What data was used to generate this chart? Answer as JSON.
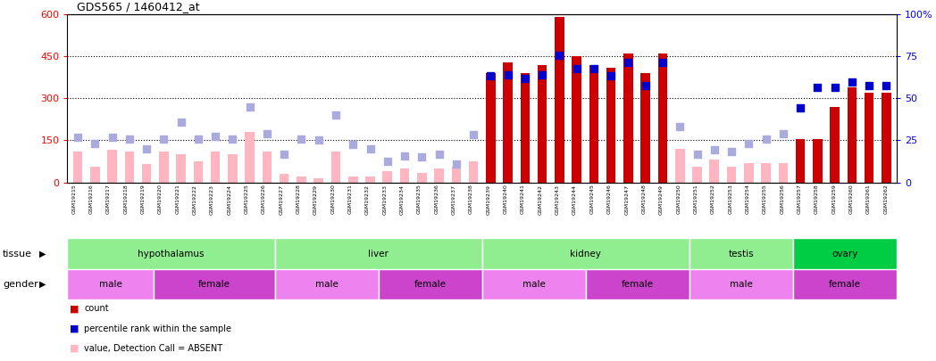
{
  "title": "GDS565 / 1460412_at",
  "samples": [
    "GSM19215",
    "GSM19216",
    "GSM19217",
    "GSM19218",
    "GSM19219",
    "GSM19220",
    "GSM19221",
    "GSM19222",
    "GSM19223",
    "GSM19224",
    "GSM19225",
    "GSM19226",
    "GSM19227",
    "GSM19228",
    "GSM19229",
    "GSM19230",
    "GSM19231",
    "GSM19232",
    "GSM19233",
    "GSM19234",
    "GSM19235",
    "GSM19236",
    "GSM19237",
    "GSM19238",
    "GSM19239",
    "GSM19240",
    "GSM19241",
    "GSM19242",
    "GSM19243",
    "GSM19244",
    "GSM19245",
    "GSM19246",
    "GSM19247",
    "GSM19248",
    "GSM19249",
    "GSM19250",
    "GSM19251",
    "GSM19252",
    "GSM19253",
    "GSM19254",
    "GSM19255",
    "GSM19256",
    "GSM19257",
    "GSM19258",
    "GSM19259",
    "GSM19260",
    "GSM19261",
    "GSM19262"
  ],
  "count_values": [
    110,
    55,
    115,
    110,
    65,
    110,
    100,
    75,
    110,
    100,
    180,
    110,
    30,
    20,
    15,
    110,
    20,
    20,
    40,
    50,
    35,
    50,
    55,
    75,
    390,
    430,
    390,
    420,
    590,
    450,
    420,
    410,
    460,
    390,
    460,
    120,
    55,
    80,
    55,
    70,
    70,
    70,
    155,
    155,
    270,
    340,
    320,
    320
  ],
  "percentile_values": [
    160,
    140,
    160,
    155,
    120,
    155,
    215,
    155,
    165,
    155,
    270,
    175,
    100,
    155,
    150,
    240,
    135,
    120,
    75,
    95,
    90,
    100,
    65,
    170,
    380,
    385,
    370,
    385,
    455,
    405,
    405,
    380,
    430,
    345,
    430,
    200,
    100,
    115,
    110,
    140,
    155,
    175,
    265,
    340,
    340,
    360,
    345,
    345
  ],
  "is_absent": [
    true,
    true,
    true,
    true,
    true,
    true,
    true,
    true,
    true,
    true,
    true,
    true,
    true,
    true,
    true,
    true,
    true,
    true,
    true,
    true,
    true,
    true,
    true,
    true,
    false,
    false,
    false,
    false,
    false,
    false,
    false,
    false,
    false,
    false,
    false,
    true,
    true,
    true,
    true,
    true,
    true,
    true,
    false,
    false,
    false,
    false,
    false,
    false
  ],
  "tissue_groups": [
    {
      "label": "hypothalamus",
      "start": 0,
      "end": 11,
      "color": "#90EE90"
    },
    {
      "label": "liver",
      "start": 12,
      "end": 23,
      "color": "#90EE90"
    },
    {
      "label": "kidney",
      "start": 24,
      "end": 35,
      "color": "#90EE90"
    },
    {
      "label": "testis",
      "start": 36,
      "end": 41,
      "color": "#90EE90"
    },
    {
      "label": "ovary",
      "start": 42,
      "end": 47,
      "color": "#00CC44"
    }
  ],
  "gender_groups": [
    {
      "label": "male",
      "start": 0,
      "end": 4,
      "color": "#EE82EE"
    },
    {
      "label": "female",
      "start": 5,
      "end": 11,
      "color": "#CC44CC"
    },
    {
      "label": "male",
      "start": 12,
      "end": 17,
      "color": "#EE82EE"
    },
    {
      "label": "female",
      "start": 18,
      "end": 23,
      "color": "#CC44CC"
    },
    {
      "label": "male",
      "start": 24,
      "end": 29,
      "color": "#EE82EE"
    },
    {
      "label": "female",
      "start": 30,
      "end": 35,
      "color": "#CC44CC"
    },
    {
      "label": "male",
      "start": 36,
      "end": 41,
      "color": "#EE82EE"
    },
    {
      "label": "female",
      "start": 42,
      "end": 47,
      "color": "#CC44CC"
    }
  ],
  "yticks_left": [
    0,
    150,
    300,
    450,
    600
  ],
  "ytick_labels_left": [
    "0",
    "150",
    "300",
    "450",
    "600"
  ],
  "yticks_right": [
    0,
    25,
    50,
    75,
    100
  ],
  "ytick_labels_right": [
    "0",
    "25",
    "50",
    "75",
    "100%"
  ],
  "bar_color_present": "#CC0000",
  "bar_color_absent": "#FFB6C1",
  "dot_color_present": "#0000CC",
  "dot_color_absent": "#AAAADD",
  "legend_items": [
    {
      "color": "#CC0000",
      "text": "count"
    },
    {
      "color": "#0000CC",
      "text": "percentile rank within the sample"
    },
    {
      "color": "#FFB6C1",
      "text": "value, Detection Call = ABSENT"
    },
    {
      "color": "#AAAADD",
      "text": "rank, Detection Call = ABSENT"
    }
  ]
}
